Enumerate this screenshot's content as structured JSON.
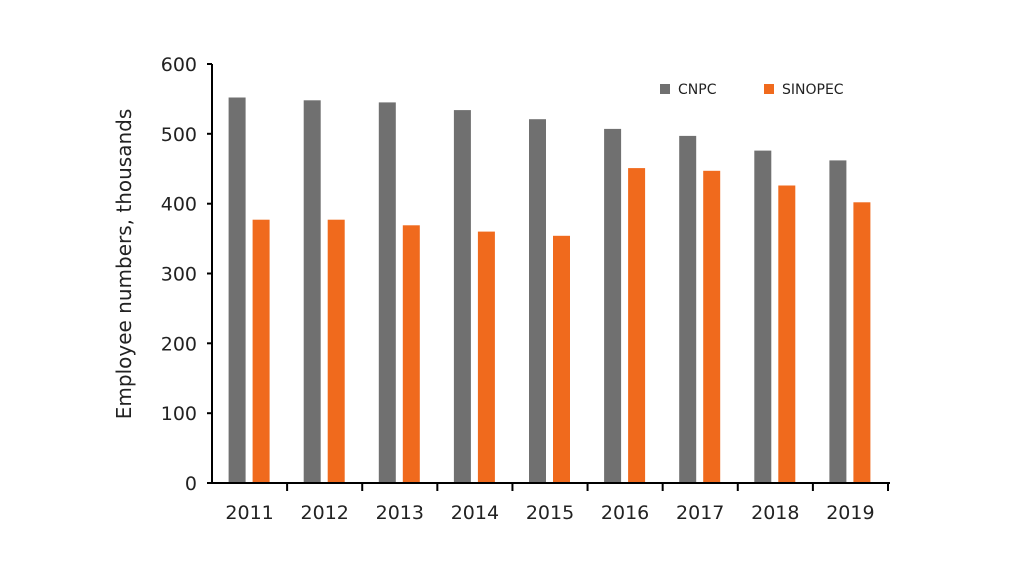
{
  "chart_data": {
    "type": "bar",
    "title": "",
    "xlabel": "",
    "ylabel": "Employee numbers, thousands",
    "ylim": [
      0,
      600
    ],
    "yticks": [
      0,
      100,
      200,
      300,
      400,
      500,
      600
    ],
    "categories": [
      "2011",
      "2012",
      "2013",
      "2014",
      "2015",
      "2016",
      "2017",
      "2018",
      "2019"
    ],
    "series": [
      {
        "name": "CNPC",
        "color": "#707070",
        "values": [
          552,
          548,
          545,
          534,
          521,
          507,
          497,
          476,
          462
        ]
      },
      {
        "name": "SINOPEC",
        "color": "#f06a1d",
        "values": [
          377,
          377,
          369,
          360,
          354,
          451,
          447,
          426,
          402
        ]
      }
    ],
    "grid": false,
    "legend_position": "top-right"
  }
}
